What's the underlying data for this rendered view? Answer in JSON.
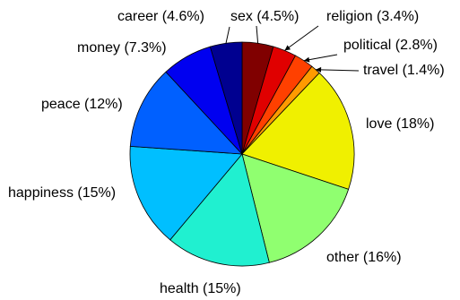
{
  "chart_data": {
    "type": "pie",
    "slices": [
      {
        "label": "sex (4.5%)",
        "value": 4.5,
        "color": "#800000"
      },
      {
        "label": "religion (3.4%)",
        "value": 3.4,
        "color": "#e00000"
      },
      {
        "label": "political (2.8%)",
        "value": 2.8,
        "color": "#ff4000"
      },
      {
        "label": "travel (1.4%)",
        "value": 1.4,
        "color": "#ff9a00"
      },
      {
        "label": "love (18%)",
        "value": 18,
        "color": "#f0f000"
      },
      {
        "label": "other (16%)",
        "value": 16,
        "color": "#90ff70"
      },
      {
        "label": "health (15%)",
        "value": 15,
        "color": "#20f0d0"
      },
      {
        "label": "happiness (15%)",
        "value": 15,
        "color": "#00bfff"
      },
      {
        "label": "peace (12%)",
        "value": 12,
        "color": "#0060ff"
      },
      {
        "label": "money (7.3%)",
        "value": 7.3,
        "color": "#0000f0"
      },
      {
        "label": "career (4.6%)",
        "value": 4.6,
        "color": "#000090"
      }
    ]
  }
}
